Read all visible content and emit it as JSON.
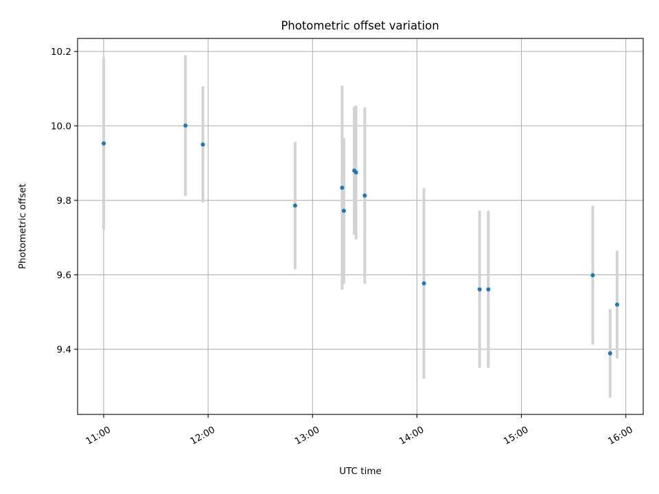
{
  "chart_data": {
    "type": "scatter",
    "title": "Photometric offset variation",
    "xlabel": "UTC time",
    "ylabel": "Photometric offset",
    "x_axis": "time",
    "xlim": [
      "10:45",
      "16:10"
    ],
    "ylim": [
      9.225,
      10.235
    ],
    "x_ticks": [
      "11:00",
      "12:00",
      "13:00",
      "14:00",
      "15:00",
      "16:00"
    ],
    "y_ticks": [
      "9.4",
      "9.6",
      "9.8",
      "10.0",
      "10.2"
    ],
    "grid": true,
    "point_color": "#1f77b4",
    "error_bar_color": "#d3d3d3",
    "points": [
      {
        "x": "11:00",
        "y": 9.953,
        "y_low": 9.722,
        "y_high": 10.184
      },
      {
        "x": "11:47",
        "y": 10.001,
        "y_low": 9.812,
        "y_high": 10.19
      },
      {
        "x": "11:57",
        "y": 9.95,
        "y_low": 9.794,
        "y_high": 10.106
      },
      {
        "x": "12:50",
        "y": 9.786,
        "y_low": 9.615,
        "y_high": 9.957
      },
      {
        "x": "13:17",
        "y": 9.834,
        "y_low": 9.56,
        "y_high": 10.108
      },
      {
        "x": "13:18",
        "y": 9.772,
        "y_low": 9.576,
        "y_high": 9.968
      },
      {
        "x": "13:24",
        "y": 9.88,
        "y_low": 9.708,
        "y_high": 10.052
      },
      {
        "x": "13:25",
        "y": 9.875,
        "y_low": 9.695,
        "y_high": 10.055
      },
      {
        "x": "13:30",
        "y": 9.813,
        "y_low": 9.576,
        "y_high": 10.05
      },
      {
        "x": "14:04",
        "y": 9.577,
        "y_low": 9.321,
        "y_high": 9.833
      },
      {
        "x": "14:36",
        "y": 9.561,
        "y_low": 9.35,
        "y_high": 9.772
      },
      {
        "x": "14:41",
        "y": 9.561,
        "y_low": 9.35,
        "y_high": 9.772
      },
      {
        "x": "15:41",
        "y": 9.599,
        "y_low": 9.413,
        "y_high": 9.785
      },
      {
        "x": "15:51",
        "y": 9.389,
        "y_low": 9.27,
        "y_high": 9.508
      },
      {
        "x": "15:55",
        "y": 9.52,
        "y_low": 9.375,
        "y_high": 9.665
      }
    ]
  }
}
